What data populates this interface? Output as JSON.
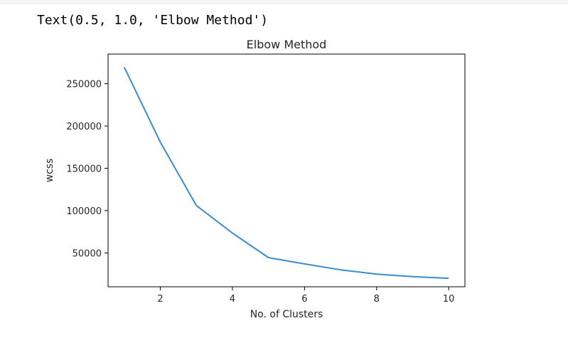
{
  "output": {
    "text": "Text(0.5, 1.0, 'Elbow Method')"
  },
  "chart_data": {
    "type": "line",
    "title": "Elbow Method",
    "xlabel": "No. of Clusters",
    "ylabel": "wcss",
    "xlim": [
      0.55,
      10.45
    ],
    "ylim": [
      10000,
      285000
    ],
    "xticks": [
      2,
      4,
      6,
      8,
      10
    ],
    "yticks": [
      50000,
      100000,
      150000,
      200000,
      250000
    ],
    "grid": false,
    "line_color": "#3c8bcc",
    "series": [
      {
        "x": [
          1,
          2,
          3,
          4,
          5,
          6,
          7,
          8,
          9,
          10
        ],
        "values": [
          269500,
          181000,
          106000,
          73500,
          44500,
          37000,
          30000,
          25000,
          22000,
          20000
        ]
      }
    ]
  }
}
